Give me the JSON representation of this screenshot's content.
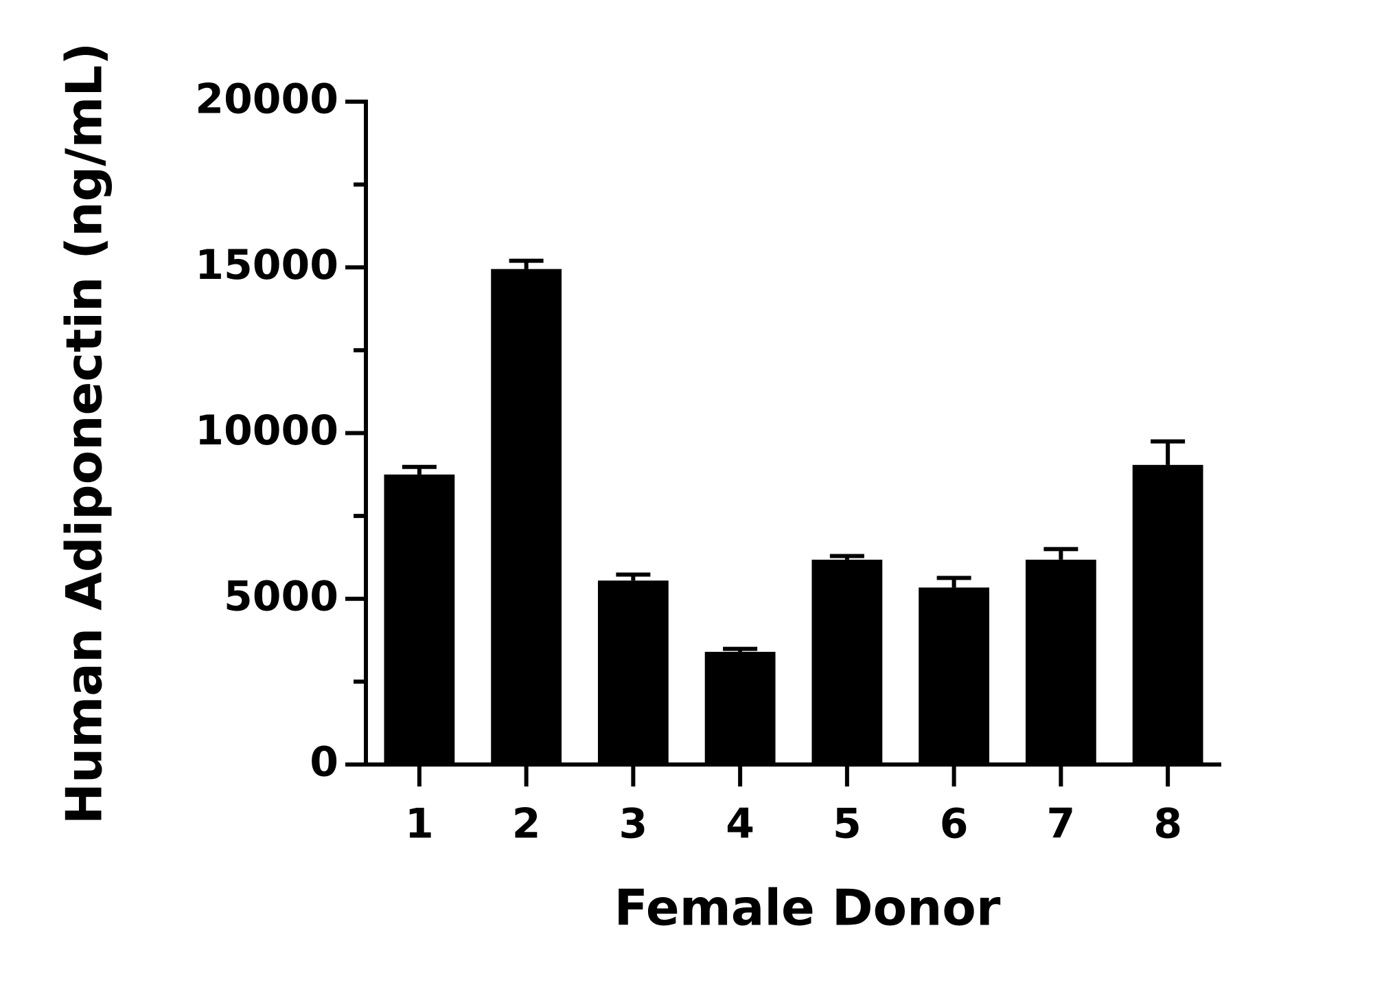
{
  "chart_data": {
    "type": "bar",
    "x_label": "Female Donor",
    "y_label": "Human Adiponectin (ng/mL)",
    "categories": [
      "1",
      "2",
      "3",
      "4",
      "5",
      "6",
      "7",
      "8"
    ],
    "values": [
      8750,
      14950,
      5550,
      3400,
      6180,
      5340,
      6180,
      9040
    ],
    "errors": [
      230,
      250,
      180,
      90,
      110,
      290,
      320,
      710
    ],
    "color": "#000000",
    "ylim": [
      0,
      20000
    ],
    "yticks": [
      0,
      5000,
      10000,
      15000,
      20000
    ],
    "yminor_ticks": [
      2500,
      7500,
      12500,
      17500
    ],
    "grid": false
  }
}
